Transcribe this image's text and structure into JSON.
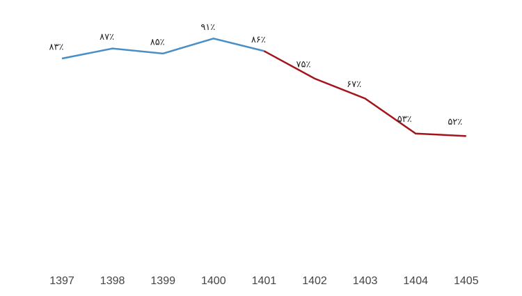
{
  "chart_data": {
    "type": "line",
    "categories": [
      "1397",
      "1398",
      "1399",
      "1400",
      "1401",
      "1402",
      "1403",
      "1404",
      "1405"
    ],
    "series": [
      {
        "color": "#4a8ec6",
        "values": [
          83,
          87,
          85,
          91,
          86,
          null,
          null,
          null,
          null
        ],
        "value_labels": [
          "۸۳٪",
          "۸۷٪",
          "۸۵٪",
          "۹۱٪",
          "۸۶٪",
          null,
          null,
          null,
          null
        ]
      },
      {
        "color": "#a3141c",
        "values": [
          null,
          null,
          null,
          null,
          86,
          75,
          67,
          53,
          52
        ],
        "value_labels": [
          null,
          null,
          null,
          null,
          null,
          "۷۵٪",
          "۶۷٪",
          "۵۳٪",
          "۵۲٪"
        ]
      }
    ],
    "ylim": [
      0,
      100
    ]
  }
}
